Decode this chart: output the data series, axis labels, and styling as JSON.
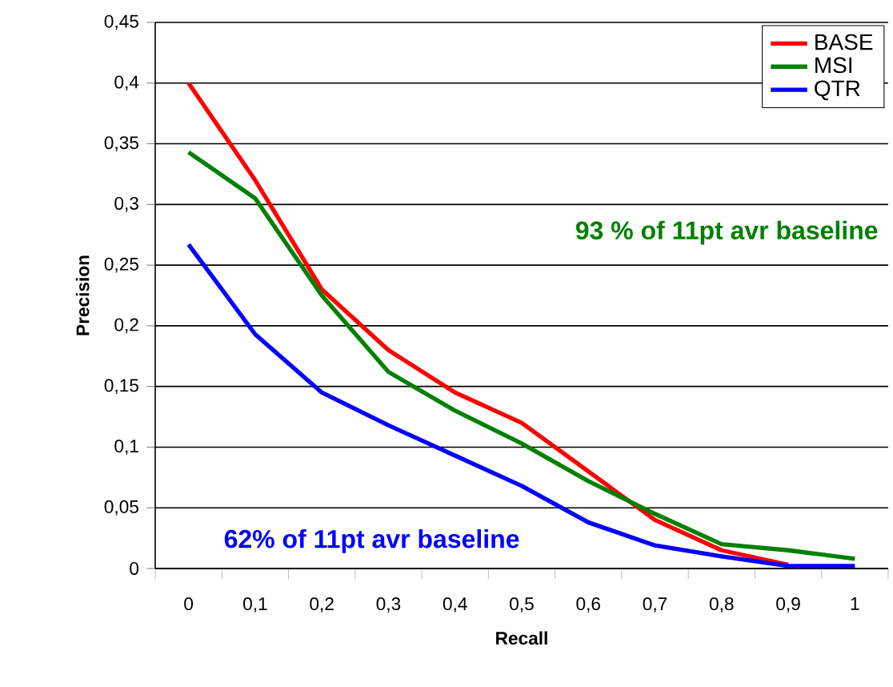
{
  "chart_data": {
    "type": "line",
    "xlabel": "Recall",
    "ylabel": "Precision",
    "categories": [
      "0",
      "0,1",
      "0,2",
      "0,3",
      "0,4",
      "0,5",
      "0,6",
      "0,7",
      "0,8",
      "0,9",
      "1"
    ],
    "series": [
      {
        "name": "BASE",
        "color": "#ff0000",
        "values": [
          0.4,
          0.32,
          0.23,
          0.18,
          0.145,
          0.12,
          0.08,
          0.04,
          0.015,
          0.003,
          null
        ]
      },
      {
        "name": "MSI",
        "color": "#008000",
        "values": [
          0.343,
          0.305,
          0.225,
          0.162,
          0.13,
          0.103,
          0.072,
          0.045,
          0.02,
          0.015,
          0.008
        ]
      },
      {
        "name": "QTR",
        "color": "#0000ff",
        "values": [
          0.267,
          0.193,
          0.145,
          0.118,
          0.093,
          0.068,
          0.038,
          0.019,
          0.01,
          0.002,
          0.002
        ]
      }
    ],
    "ylim": [
      0,
      0.45
    ],
    "yticks": [
      0,
      {
        "value": 0.05,
        "label": "0,05"
      },
      {
        "value": 0.1,
        "label": "0,1"
      },
      {
        "value": 0.15,
        "label": "0,15"
      },
      {
        "value": 0.2,
        "label": "0,2"
      },
      {
        "value": 0.25,
        "label": "0,25"
      },
      {
        "value": 0.3,
        "label": "0,3"
      },
      {
        "value": 0.35,
        "label": "0,35"
      },
      {
        "value": 0.4,
        "label": "0,4"
      },
      {
        "value": 0.45,
        "label": "0,45"
      }
    ],
    "annotations": [
      "93 % of 11pt avr baseline",
      "62% of 11pt avr baseline"
    ],
    "grid": "y",
    "legend": "top right",
    "marker": "none",
    "line_style": "solid"
  }
}
